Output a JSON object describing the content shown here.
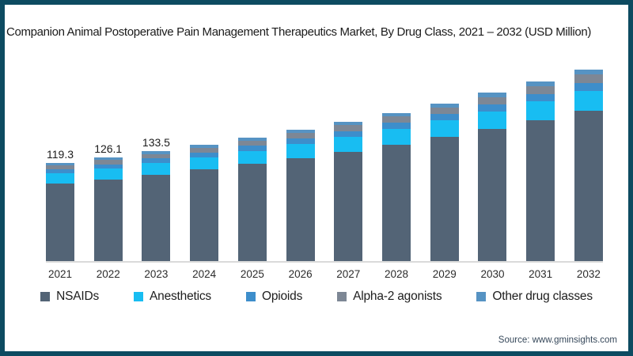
{
  "frame": {
    "title": "Companion Animal Postoperative Pain Management Therapeutics Market, By Drug Class, 2021 – 2032 (USD Million)",
    "source": "Source: www.gminsights.com",
    "border_color": "#0d4b61"
  },
  "chart_data": {
    "type": "bar",
    "stacked": true,
    "title": "Companion Animal Postoperative Pain Management Therapeutics Market, By Drug Class, 2021 – 2032 (USD Million)",
    "xlabel": "",
    "ylabel": "USD Million",
    "legend_position": "bottom",
    "grid": false,
    "categories": [
      "2021",
      "2022",
      "2023",
      "2024",
      "2025",
      "2026",
      "2027",
      "2028",
      "2029",
      "2030",
      "2031",
      "2032"
    ],
    "series": [
      {
        "name": "NSAIDs",
        "color": "#536476",
        "values": [
          94.0,
          99.3,
          105.1,
          111.3,
          118.0,
          125.3,
          133.1,
          141.6,
          150.7,
          160.5,
          171.2,
          182.6
        ]
      },
      {
        "name": "Anesthetics",
        "color": "#18bdf2",
        "values": [
          12.5,
          13.2,
          14.0,
          14.9,
          15.8,
          16.7,
          17.8,
          18.9,
          20.2,
          21.5,
          22.9,
          24.4
        ]
      },
      {
        "name": "Opioids",
        "color": "#3d8ecb",
        "values": [
          5.0,
          5.3,
          5.6,
          5.9,
          6.3,
          6.7,
          7.1,
          7.6,
          8.1,
          8.6,
          9.2,
          9.8
        ]
      },
      {
        "name": "Alpha-2 agonists",
        "color": "#7d8795",
        "values": [
          5.0,
          5.3,
          5.6,
          5.9,
          6.3,
          6.7,
          7.1,
          7.6,
          8.1,
          8.6,
          9.2,
          9.8
        ]
      },
      {
        "name": "Other drug classes",
        "color": "#5693c3",
        "values": [
          2.8,
          3.0,
          3.2,
          3.5,
          3.7,
          4.0,
          4.3,
          4.5,
          4.8,
          5.3,
          5.6,
          6.1
        ]
      }
    ],
    "totals": [
      119.3,
      126.1,
      133.5,
      141.5,
      150.1,
      159.4,
      169.4,
      180.2,
      191.9,
      204.5,
      218.1,
      232.7
    ],
    "total_labels": [
      "119.3",
      "126.1",
      "133.5",
      "",
      "",
      "",
      "",
      "",
      "",
      "",
      "",
      ""
    ],
    "ylim": [
      0,
      250
    ]
  }
}
